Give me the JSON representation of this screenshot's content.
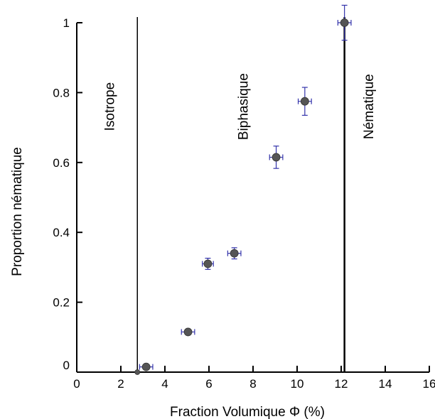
{
  "chart_data": {
    "type": "scatter",
    "title": "",
    "xlabel": "Fraction Volumique Φ (%)",
    "ylabel": "Proportion nématique",
    "xlim": [
      0,
      16
    ],
    "ylim": [
      0,
      1
    ],
    "x_ticks": [
      0,
      2,
      4,
      6,
      8,
      10,
      12,
      14,
      16
    ],
    "x_tick_labels": [
      "0",
      "2",
      "4",
      "6",
      "8",
      "10",
      "12",
      "14",
      "16"
    ],
    "y_ticks": [
      0,
      0.2,
      0.4,
      0.6,
      0.8,
      1
    ],
    "y_tick_labels": [
      "0",
      "0.2",
      "0.4",
      "0.6",
      "0.8",
      "1"
    ],
    "grid": false,
    "marker_color": "#555555",
    "errorbar_color": "#3333aa",
    "boundary_color": "#000000",
    "points": [
      {
        "x": 2.75,
        "y": 0.0,
        "xerr": 0,
        "yerr": 0
      },
      {
        "x": 3.15,
        "y": 0.015,
        "xerr": 0.3,
        "yerr": 0
      },
      {
        "x": 5.05,
        "y": 0.115,
        "xerr": 0.3,
        "yerr": 0
      },
      {
        "x": 5.95,
        "y": 0.31,
        "xerr": 0.25,
        "yerr": 0.016
      },
      {
        "x": 7.15,
        "y": 0.34,
        "xerr": 0.3,
        "yerr": 0.016
      },
      {
        "x": 9.05,
        "y": 0.615,
        "xerr": 0.3,
        "yerr": 0.032
      },
      {
        "x": 10.35,
        "y": 0.775,
        "xerr": 0.3,
        "yerr": 0.04
      },
      {
        "x": 12.15,
        "y": 1.0,
        "xerr": 0.3,
        "yerr": 0.05
      }
    ],
    "boundaries": [
      {
        "x": 2.75,
        "label": "Isotrope",
        "label_side": "left"
      },
      {
        "x": 12.15,
        "label": "Nématique",
        "label_side": "right"
      }
    ],
    "region_labels": [
      {
        "text": "Isotrope",
        "x": 1.7,
        "y": 0.76
      },
      {
        "text": "Biphasique",
        "x": 7.75,
        "y": 0.76
      },
      {
        "text": "Nématique",
        "x": 13.45,
        "y": 0.76
      }
    ]
  }
}
